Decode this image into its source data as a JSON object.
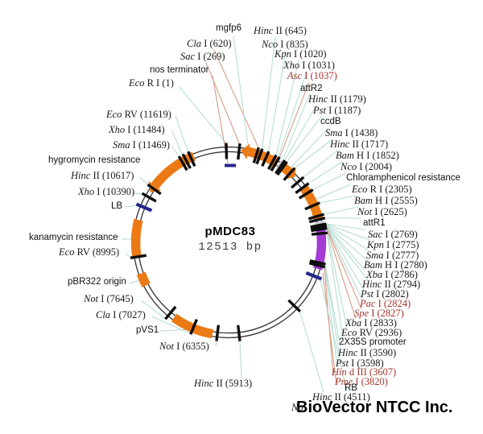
{
  "diagram": {
    "title": "pMDC83",
    "size": "12513 bp",
    "watermark": "BioVector NTCC Inc.",
    "colors": {
      "ring": "#3C3C3C",
      "tick": "#0D0D0D",
      "feature": "#EB7A14",
      "promoter": "#A43BD4",
      "att_site": "#CDCDDB",
      "border": "#26268E",
      "leader_teal": "#B6DED4",
      "leader_salmon": "#D69D86",
      "site_text": "#1A1A1A",
      "highlight_text": "#A3352A"
    },
    "labels": [
      {
        "text": "Eco R I (1)",
        "kind": "site",
        "red": false
      },
      {
        "text": "Sac I (269)",
        "kind": "site",
        "red": false
      },
      {
        "text": "Cla I (620)",
        "kind": "site",
        "red": false
      },
      {
        "text": "Hinc II (645)",
        "kind": "site",
        "red": false
      },
      {
        "text": "Nco I (835)",
        "kind": "site",
        "red": false
      },
      {
        "text": "Kpn I (1020)",
        "kind": "site",
        "red": false
      },
      {
        "text": "Xho I (1031)",
        "kind": "site",
        "red": false
      },
      {
        "text": "Asc I (1037)",
        "kind": "site",
        "red": true
      },
      {
        "text": "mgfp6",
        "kind": "feature",
        "red": false
      },
      {
        "text": "nos terminator",
        "kind": "feature",
        "red": false
      },
      {
        "text": "attR2",
        "kind": "feature",
        "red": false
      },
      {
        "text": "Hinc II (1179)",
        "kind": "site",
        "red": false
      },
      {
        "text": "Pst I (1187)",
        "kind": "site",
        "red": false
      },
      {
        "text": "ccdB",
        "kind": "feature",
        "red": false
      },
      {
        "text": "Sma I (1438)",
        "kind": "site",
        "red": false
      },
      {
        "text": "Hinc II (1717)",
        "kind": "site",
        "red": false
      },
      {
        "text": "Bam H I (1852)",
        "kind": "site",
        "red": false
      },
      {
        "text": "Nco I (2004)",
        "kind": "site",
        "red": false
      },
      {
        "text": "Chloramphenicol resistance",
        "kind": "feature",
        "red": false
      },
      {
        "text": "Eco R I (2305)",
        "kind": "site",
        "red": false
      },
      {
        "text": "Bam H I (2555)",
        "kind": "site",
        "red": false
      },
      {
        "text": "Not I (2625)",
        "kind": "site",
        "red": false
      },
      {
        "text": "attR1",
        "kind": "feature",
        "red": false
      },
      {
        "text": "Sac I (2769)",
        "kind": "site",
        "red": false
      },
      {
        "text": "Kpn I (2775)",
        "kind": "site",
        "red": false
      },
      {
        "text": "Sma I (2777)",
        "kind": "site",
        "red": false
      },
      {
        "text": "Bam H I (2780)",
        "kind": "site",
        "red": false
      },
      {
        "text": "Xba I (2786)",
        "kind": "site",
        "red": false
      },
      {
        "text": "Hinc II (2794)",
        "kind": "site",
        "red": false
      },
      {
        "text": "Pst I (2802)",
        "kind": "site",
        "red": false
      },
      {
        "text": "Pac I (2824)",
        "kind": "site",
        "red": true
      },
      {
        "text": "Spe I (2827)",
        "kind": "site",
        "red": true
      },
      {
        "text": "Xba I (2833)",
        "kind": "site",
        "red": false
      },
      {
        "text": "Eco RV (2936)",
        "kind": "site",
        "red": false
      },
      {
        "text": "2X35S promoter",
        "kind": "feature",
        "red": false
      },
      {
        "text": "Hinc II (3590)",
        "kind": "site",
        "red": false
      },
      {
        "text": "Pst I (3598)",
        "kind": "site",
        "red": false
      },
      {
        "text": "Hin d III (3607)",
        "kind": "site",
        "red": true
      },
      {
        "text": "Pme I (3820)",
        "kind": "site",
        "red": true
      },
      {
        "text": "RB",
        "kind": "feature",
        "red": false
      },
      {
        "text": "Hinc II (4511)",
        "kind": "site",
        "red": false
      },
      {
        "text": "No",
        "kind": "site",
        "red": false
      },
      {
        "text": "Hinc II (5913)",
        "kind": "site",
        "red": false
      },
      {
        "text": "Not I (6355)",
        "kind": "site",
        "red": false
      },
      {
        "text": "pVS1",
        "kind": "feature",
        "red": false
      },
      {
        "text": "Cla I (7027)",
        "kind": "site",
        "red": false
      },
      {
        "text": "Not I (7645)",
        "kind": "site",
        "red": false
      },
      {
        "text": "pBR322 origin",
        "kind": "feature",
        "red": false
      },
      {
        "text": "Eco RV (8995)",
        "kind": "site",
        "red": false
      },
      {
        "text": "kanamycin resistance",
        "kind": "feature",
        "red": false
      },
      {
        "text": "LB",
        "kind": "feature",
        "red": false
      },
      {
        "text": "Xho I (10390)",
        "kind": "site",
        "red": false
      },
      {
        "text": "Hinc II (10617)",
        "kind": "site",
        "red": false
      },
      {
        "text": "hygromycin resistance",
        "kind": "feature",
        "red": false
      },
      {
        "text": "Sma I (11469)",
        "kind": "site",
        "red": false
      },
      {
        "text": "Xho I (11484)",
        "kind": "site",
        "red": false
      },
      {
        "text": "Eco RV (11619)",
        "kind": "site",
        "red": false
      }
    ],
    "features": [
      {
        "name": "mgfp6",
        "shape": "arrow"
      },
      {
        "name": "attR2",
        "shape": "block"
      },
      {
        "name": "ccdB",
        "shape": "arrow"
      },
      {
        "name": "chloramphenicol-resistance",
        "shape": "arc"
      },
      {
        "name": "attR1",
        "shape": "block"
      },
      {
        "name": "2x35s-promoter",
        "shape": "arc"
      },
      {
        "name": "pVS1",
        "shape": "arc"
      },
      {
        "name": "pBR322-origin",
        "shape": "block"
      },
      {
        "name": "kanamycin-resistance",
        "shape": "arc"
      },
      {
        "name": "hygromycin-resistance",
        "shape": "arrow"
      },
      {
        "name": "nos-terminator",
        "shape": "dash"
      },
      {
        "name": "LB",
        "shape": "border-tick"
      },
      {
        "name": "RB",
        "shape": "border-tick"
      }
    ]
  }
}
